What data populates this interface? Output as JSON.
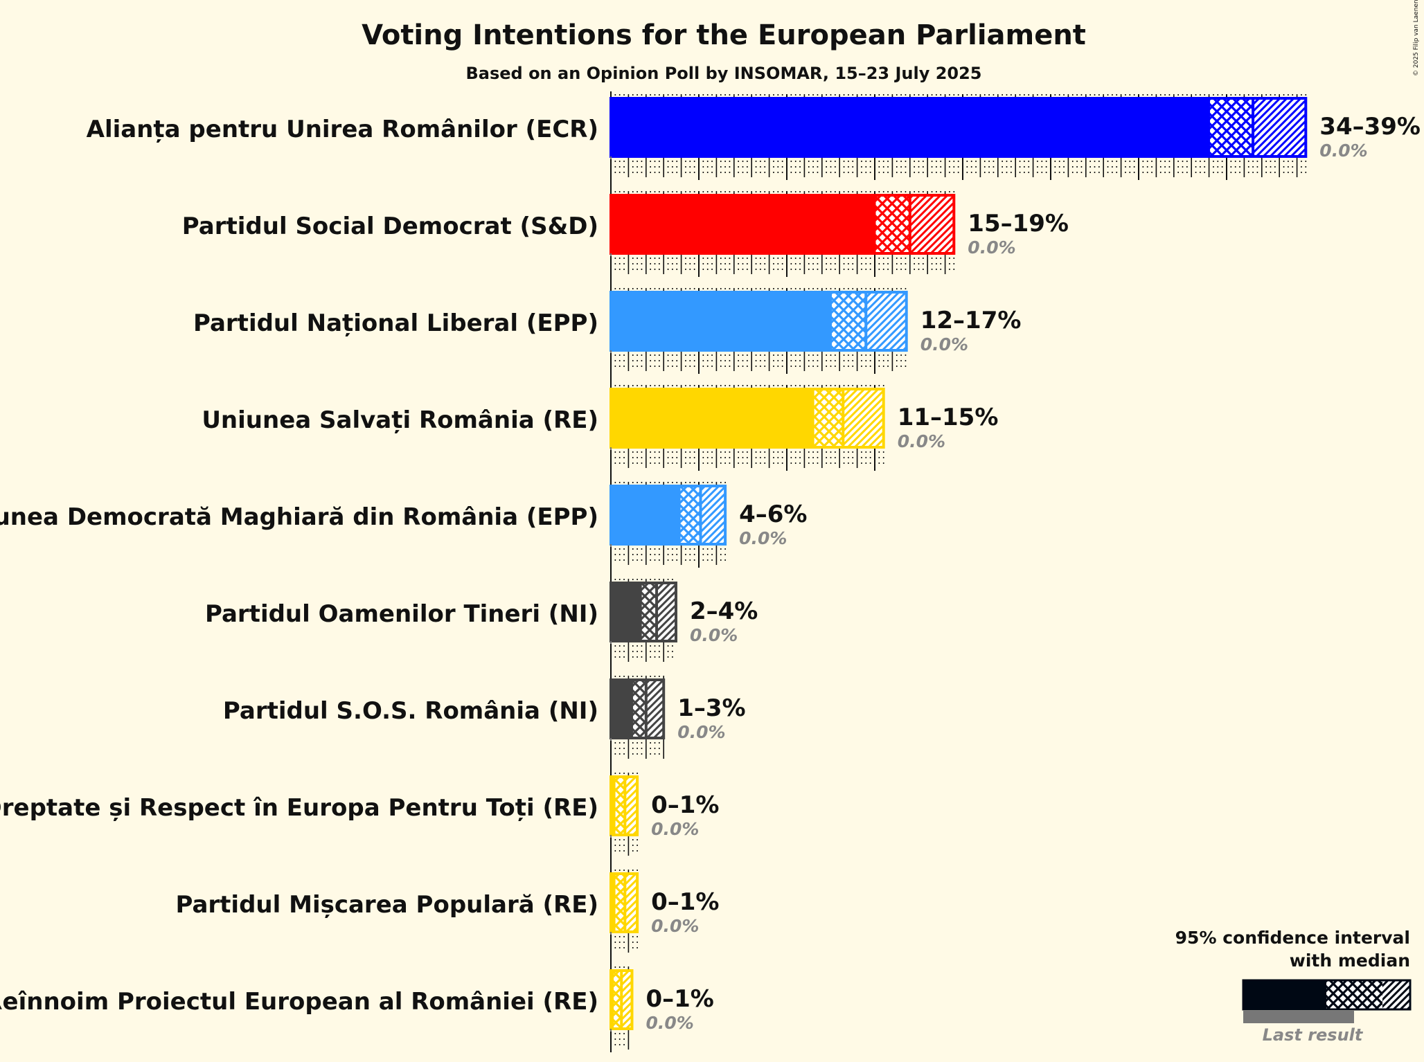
{
  "chart_data": {
    "type": "bar",
    "orientation": "horizontal",
    "title": "Voting Intentions for the European Parliament",
    "subtitle": "Based on an Opinion Poll by INSOMAR, 15–23 July 2025",
    "credit": "© 2025 Filip van Laenen",
    "xlim": [
      0,
      40
    ],
    "parties": [
      {
        "name": "Alianța pentru Unirea Românilor (ECR)",
        "color": "#0000ff",
        "ci_low": 34,
        "median": 36.5,
        "ci_high": 39.5,
        "range_label": "34–39%",
        "last_result": 0.0,
        "last_label": "0.0%"
      },
      {
        "name": "Partidul Social Democrat (S&D)",
        "color": "#ff0000",
        "ci_low": 15,
        "median": 17,
        "ci_high": 19.5,
        "range_label": "15–19%",
        "last_result": 0.0,
        "last_label": "0.0%"
      },
      {
        "name": "Partidul Național Liberal (EPP)",
        "color": "#3399ff",
        "ci_low": 12.5,
        "median": 14.5,
        "ci_high": 16.8,
        "range_label": "12–17%",
        "last_result": 0.0,
        "last_label": "0.0%"
      },
      {
        "name": "Uniunea Salvați România (RE)",
        "color": "#ffd700",
        "ci_low": 11.5,
        "median": 13.2,
        "ci_high": 15.5,
        "range_label": "11–15%",
        "last_result": 0.0,
        "last_label": "0.0%"
      },
      {
        "name": "Uniunea Democrată Maghiară din România (EPP)",
        "color": "#3399ff",
        "ci_low": 3.9,
        "median": 5.1,
        "ci_high": 6.5,
        "range_label": "4–6%",
        "last_result": 0.0,
        "last_label": "0.0%"
      },
      {
        "name": "Partidul Oamenilor Tineri (NI)",
        "color": "#444444",
        "ci_low": 1.7,
        "median": 2.6,
        "ci_high": 3.7,
        "range_label": "2–4%",
        "last_result": 0.0,
        "last_label": "0.0%"
      },
      {
        "name": "Partidul S.O.S. România (NI)",
        "color": "#444444",
        "ci_low": 1.2,
        "median": 2.0,
        "ci_high": 3.0,
        "range_label": "1–3%",
        "last_result": 0.0,
        "last_label": "0.0%"
      },
      {
        "name": "Dreptate și Respect în Europa Pentru Toți (RE)",
        "color": "#ffd700",
        "ci_low": 0.2,
        "median": 0.8,
        "ci_high": 1.5,
        "range_label": "0–1%",
        "last_result": 0.0,
        "last_label": "0.0%"
      },
      {
        "name": "Partidul Mișcarea Populară (RE)",
        "color": "#ffd700",
        "ci_low": 0.2,
        "median": 0.8,
        "ci_high": 1.5,
        "range_label": "0–1%",
        "last_result": 0.0,
        "last_label": "0.0%"
      },
      {
        "name": "Reînnoim Proiectul European al României (RE)",
        "color": "#ffd700",
        "ci_low": 0.1,
        "median": 0.6,
        "ci_high": 1.2,
        "range_label": "0–1%",
        "last_result": 0.0,
        "last_label": "0.0%"
      }
    ],
    "legend": {
      "line1": "95% confidence interval",
      "line2": "with median",
      "last_result_label": "Last result",
      "placement": "bottom-right"
    }
  }
}
